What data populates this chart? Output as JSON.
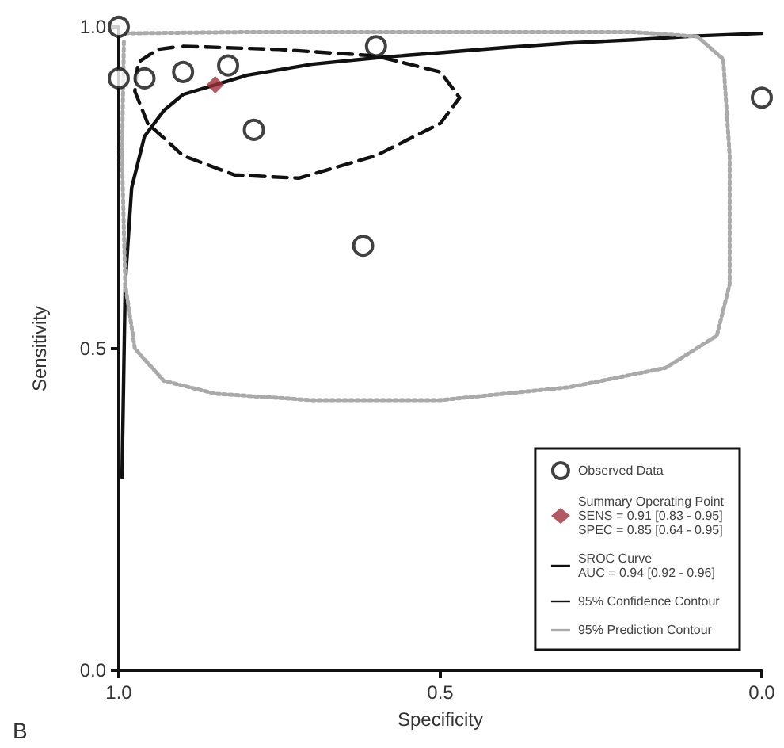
{
  "chart_data": {
    "type": "scatter",
    "xlabel": "Specificity",
    "ylabel": "Sensitivity",
    "xlim": [
      1,
      0
    ],
    "xticks": [
      {
        "value": 1,
        "label": "1.0"
      },
      0.5,
      {
        "value": 0,
        "label": "0.0"
      }
    ],
    "ylim": [
      0,
      1
    ],
    "yticks": [
      {
        "value": 0,
        "label": "0.0"
      },
      0.5,
      {
        "value": 1,
        "label": "1.0"
      }
    ],
    "grid": false,
    "legend": "bottom right",
    "annotations": [
      "B"
    ],
    "series": [
      {
        "name": "Observed Data",
        "marker": "circle",
        "color": "#111111",
        "x": [
          1.0,
          1.0,
          0.96,
          0.9,
          0.83,
          0.79,
          0.6,
          0.62,
          0.0
        ],
        "values": [
          1.0,
          0.92,
          0.92,
          0.93,
          0.94,
          0.84,
          0.97,
          0.66,
          0.89
        ]
      },
      {
        "name": "Summary Operating Point\nSENS = 0.91 [0.83 - 0.95]\nSPEC = 0.85 [0.64 - 0.95]",
        "marker": "diamond",
        "color": "#a0303a",
        "x": [
          0.85
        ],
        "values": [
          0.91
        ]
      },
      {
        "name": "SROC Curve\nAUC = 0.94 [0.92 - 0.96]",
        "type": "line",
        "line_style": "solid",
        "marker": "none",
        "color": "#111111",
        "x": [
          0.995,
          0.99,
          0.98,
          0.96,
          0.93,
          0.9,
          0.85,
          0.8,
          0.7,
          0.6,
          0.5,
          0.4,
          0.3,
          0.2,
          0.1,
          0.0
        ],
        "values": [
          0.3,
          0.6,
          0.75,
          0.83,
          0.87,
          0.895,
          0.91,
          0.925,
          0.942,
          0.952,
          0.96,
          0.968,
          0.975,
          0.98,
          0.986,
          0.99
        ]
      },
      {
        "name": "95% Confidence Contour",
        "type": "line",
        "line_style": "dashed",
        "marker": "none",
        "color": "#111111",
        "x": [
          0.9,
          0.75,
          0.6,
          0.5,
          0.47,
          0.5,
          0.6,
          0.72,
          0.82,
          0.9,
          0.955,
          0.975,
          0.97,
          0.94,
          0.91
        ],
        "values": [
          0.97,
          0.965,
          0.955,
          0.93,
          0.89,
          0.85,
          0.8,
          0.765,
          0.77,
          0.8,
          0.85,
          0.9,
          0.945,
          0.965,
          0.969
        ]
      },
      {
        "name": "95% Prediction Contour",
        "type": "line",
        "line_style": "dotted",
        "marker": "none",
        "color": "#aaaaaa",
        "x": [
          0.99,
          0.8,
          0.5,
          0.2,
          0.1,
          0.06,
          0.05,
          0.05,
          0.07,
          0.15,
          0.3,
          0.5,
          0.7,
          0.85,
          0.93,
          0.975,
          0.99,
          0.995,
          0.992
        ],
        "values": [
          0.99,
          0.992,
          0.992,
          0.992,
          0.985,
          0.95,
          0.8,
          0.6,
          0.52,
          0.47,
          0.44,
          0.42,
          0.42,
          0.43,
          0.45,
          0.5,
          0.6,
          0.8,
          0.98
        ]
      }
    ]
  }
}
